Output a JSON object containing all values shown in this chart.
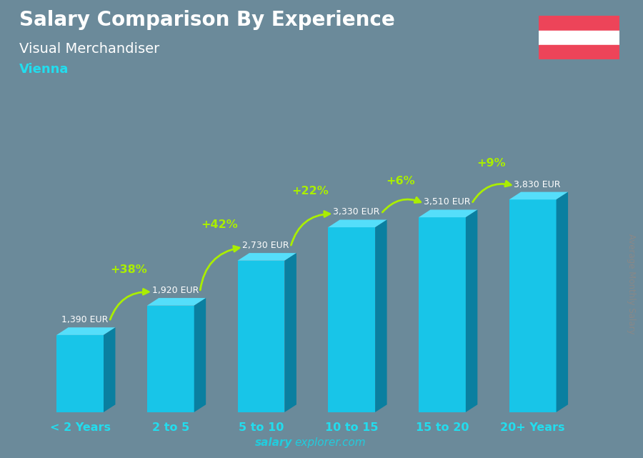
{
  "title": "Salary Comparison By Experience",
  "subtitle": "Visual Merchandiser",
  "city": "Vienna",
  "ylabel": "Average Monthly Salary",
  "watermark_bold": "salary",
  "watermark_normal": "explorer.com",
  "categories": [
    "< 2 Years",
    "2 to 5",
    "5 to 10",
    "10 to 15",
    "15 to 20",
    "20+ Years"
  ],
  "values": [
    1390,
    1920,
    2730,
    3330,
    3510,
    3830
  ],
  "pct_changes": [
    "+38%",
    "+42%",
    "+22%",
    "+6%",
    "+9%"
  ],
  "bar_color_front": "#18C5E8",
  "bar_color_top": "#55DEFA",
  "bar_color_side": "#0A7FA0",
  "bg_color": "#6B8A9A",
  "title_color": "#ffffff",
  "subtitle_color": "#ffffff",
  "city_color": "#22DDEE",
  "label_color": "#ffffff",
  "pct_color": "#AAEE00",
  "arrow_color": "#AAEE00",
  "tick_color": "#22DDEE",
  "watermark_color": "#22CCDD",
  "ylabel_color": "#888888",
  "flag_red": "#ED4459",
  "flag_white": "#FFFFFF"
}
